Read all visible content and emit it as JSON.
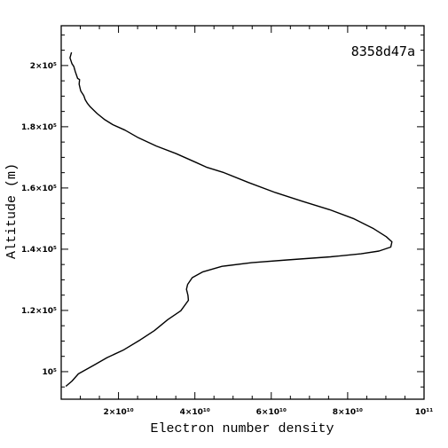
{
  "chart_data": {
    "type": "line",
    "xlabel": "Electron number density",
    "ylabel": "Altitude (m)",
    "annotation": "8358d47a",
    "xlim": [
      5000000000,
      100000000000
    ],
    "ylim": [
      91000,
      213000
    ],
    "xticks": [
      {
        "value": 20000000000,
        "label": "2×10¹⁰"
      },
      {
        "value": 40000000000,
        "label": "4×10¹⁰"
      },
      {
        "value": 60000000000,
        "label": "6×10¹⁰"
      },
      {
        "value": 80000000000,
        "label": "8×10¹⁰"
      },
      {
        "value": 100000000000,
        "label": "10¹¹"
      }
    ],
    "yticks": [
      {
        "value": 100000,
        "label": "10⁵"
      },
      {
        "value": 120000,
        "label": "1.2×10⁵"
      },
      {
        "value": 140000,
        "label": "1.4×10⁵"
      },
      {
        "value": 160000,
        "label": "1.6×10⁵"
      },
      {
        "value": 180000,
        "label": "1.8×10⁵"
      },
      {
        "value": 200000,
        "label": "2×10⁵"
      }
    ],
    "grid": false,
    "series": [
      {
        "color": "#000000",
        "x": [
          7700000000,
          7300000000,
          7800000000,
          8300000000,
          8700000000,
          9300000000,
          9800000000,
          9700000000,
          10100000000,
          10900000000,
          11300000000,
          11900000000,
          12600000000,
          14400000000,
          16400000000,
          18500000000,
          21700000000,
          25200000000,
          29900000000,
          35100000000,
          40400000000,
          43000000000,
          47600000000,
          54000000000,
          61100000000,
          68000000000,
          75300000000,
          81700000000,
          86800000000,
          90100000000,
          91600000000,
          91300000000,
          88200000000,
          83500000000,
          75500000000,
          64200000000,
          54900000000,
          47100000000,
          42100000000,
          39300000000,
          38100000000,
          37800000000,
          38200000000,
          38300000000,
          36300000000,
          32900000000,
          29400000000,
          25700000000,
          21200000000,
          17000000000,
          13400000000,
          9500000000,
          7800000000,
          6200000000
        ],
        "y": [
          204300,
          202500,
          200600,
          199700,
          198000,
          195800,
          195400,
          193900,
          191700,
          190200,
          188800,
          187600,
          186500,
          184300,
          182300,
          180700,
          178900,
          176400,
          173700,
          171200,
          168300,
          166800,
          165000,
          161800,
          158500,
          155700,
          152900,
          149900,
          146700,
          144100,
          142400,
          140700,
          139400,
          138500,
          137500,
          136500,
          135600,
          134400,
          132600,
          130700,
          128500,
          126900,
          124900,
          123300,
          119900,
          117000,
          113400,
          110400,
          107000,
          104600,
          102000,
          99300,
          96900,
          95200
        ]
      }
    ]
  }
}
